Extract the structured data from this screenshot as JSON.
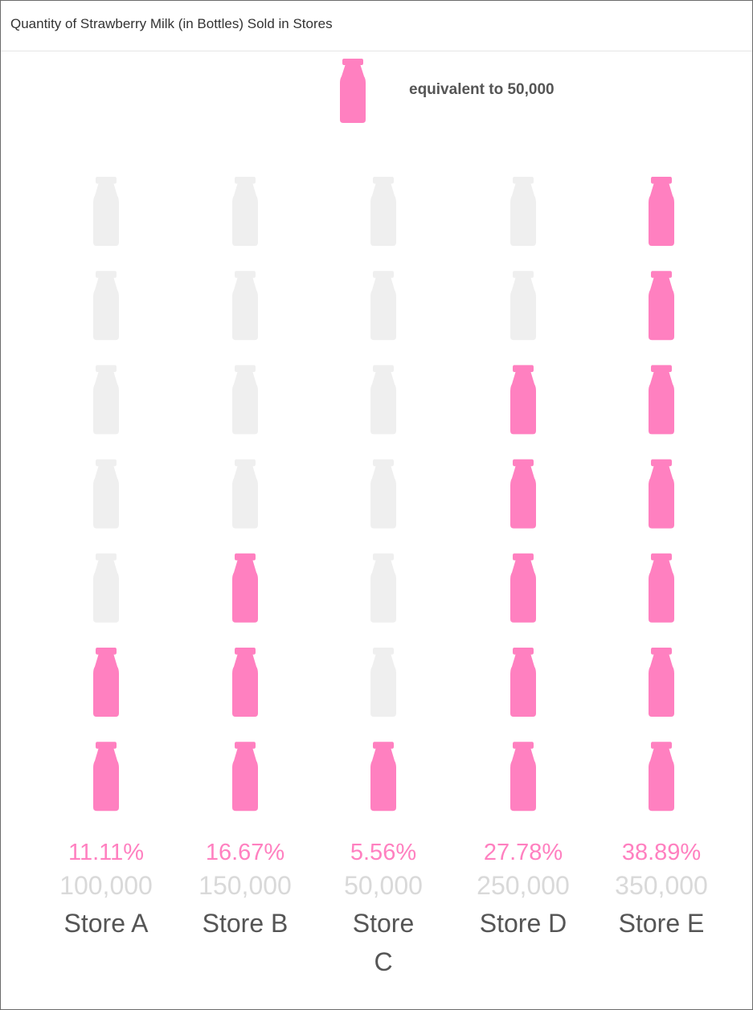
{
  "title": "Quantity of Strawberry Milk (in Bottles) Sold in Stores",
  "legend": {
    "label": "equivalent to 50,000",
    "icon": "milk-bottle-icon"
  },
  "colors": {
    "filled": "#ff80c0",
    "empty": "#efefef",
    "percent": "#ff80c0",
    "value": "#d9d9d9",
    "category": "#555555"
  },
  "chart_data": {
    "type": "pictograph",
    "unit_value": 50000,
    "max_icons": 7,
    "categories": [
      "Store A",
      "Store B",
      "Store C",
      "Store D",
      "Store E"
    ],
    "category_lines": [
      [
        "Store A"
      ],
      [
        "Store B"
      ],
      [
        "Store",
        "C"
      ],
      [
        "Store D"
      ],
      [
        "Store E"
      ]
    ],
    "values": [
      100000,
      150000,
      50000,
      250000,
      350000
    ],
    "value_labels": [
      "100,000",
      "150,000",
      "50,000",
      "250,000",
      "350,000"
    ],
    "percent_labels": [
      "11.11%",
      "16.67%",
      "5.56%",
      "27.78%",
      "38.89%"
    ]
  }
}
